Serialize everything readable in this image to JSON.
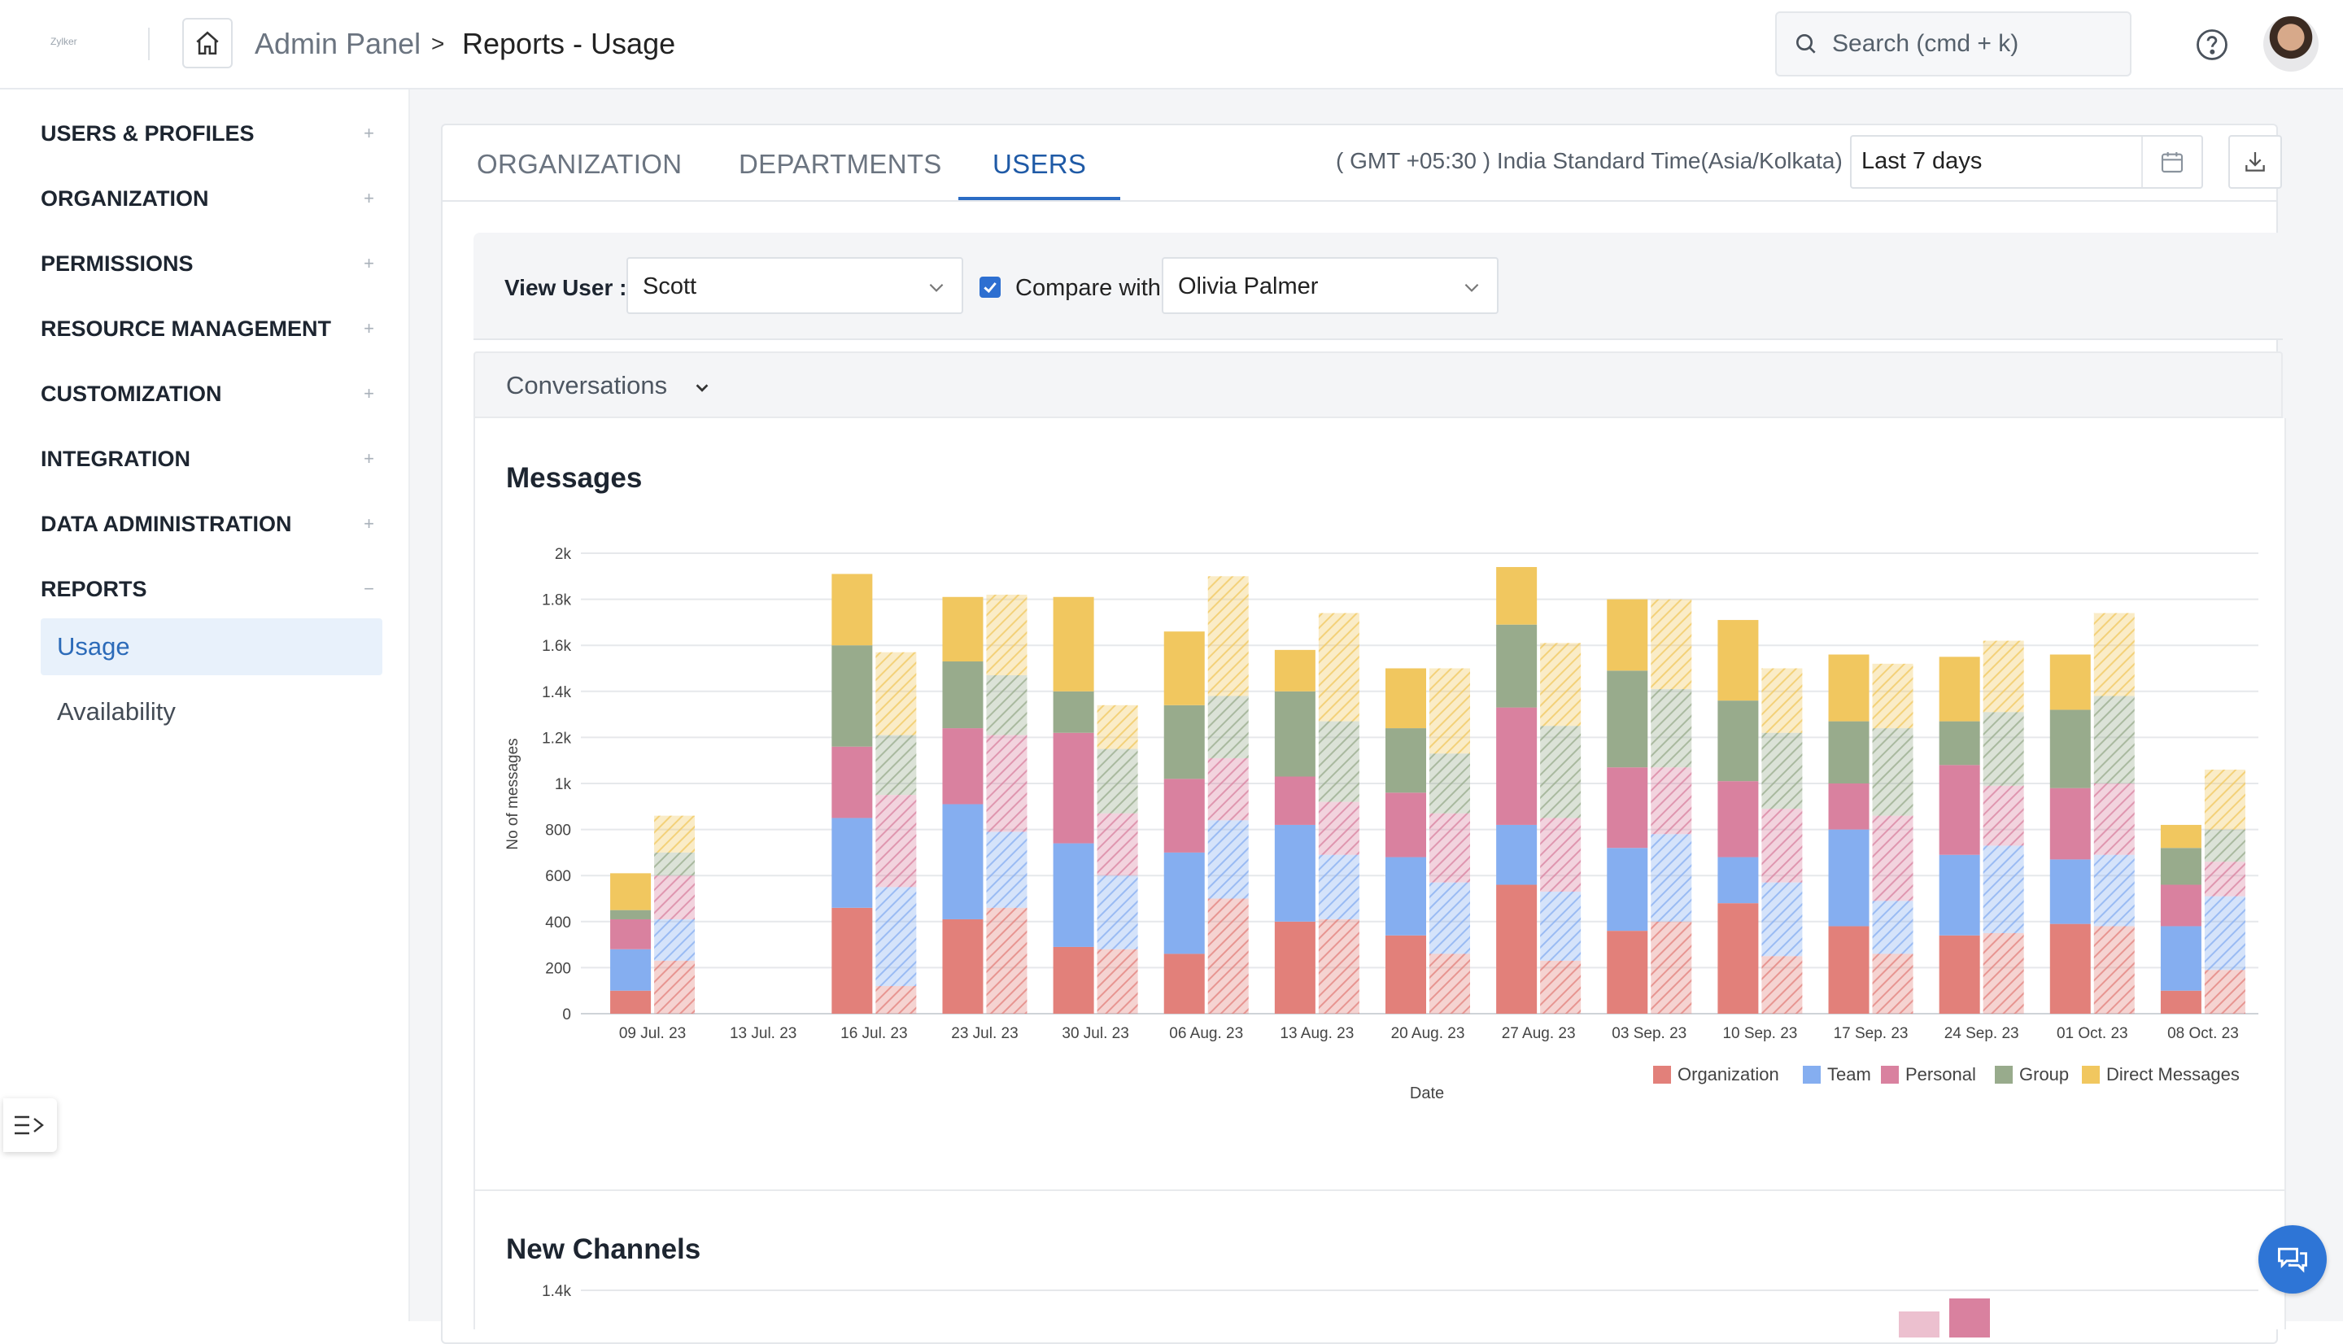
{
  "header": {
    "logo": "Zylker",
    "breadcrumb_root": "Admin Panel",
    "breadcrumb_sep": ">",
    "breadcrumb_current": "Reports - Usage",
    "search_placeholder": "Search (cmd + k)"
  },
  "sidebar": {
    "items": [
      {
        "label": "USERS & PROFILES",
        "toggle": "+"
      },
      {
        "label": "ORGANIZATION",
        "toggle": "+"
      },
      {
        "label": "PERMISSIONS",
        "toggle": "+"
      },
      {
        "label": "RESOURCE MANAGEMENT",
        "toggle": "+"
      },
      {
        "label": "CUSTOMIZATION",
        "toggle": "+"
      },
      {
        "label": "INTEGRATION",
        "toggle": "+"
      },
      {
        "label": "DATA ADMINISTRATION",
        "toggle": "+"
      },
      {
        "label": "REPORTS",
        "toggle": "−"
      }
    ],
    "sub_items": [
      {
        "label": "Usage",
        "active": true
      },
      {
        "label": "Availability",
        "active": false
      }
    ]
  },
  "tabs": [
    {
      "label": "ORGANIZATION",
      "active": false
    },
    {
      "label": "DEPARTMENTS",
      "active": false
    },
    {
      "label": "USERS",
      "active": true
    }
  ],
  "timezone": "( GMT +05:30 ) India Standard Time(Asia/Kolkata)",
  "date_range": "Last 7 days",
  "filters": {
    "view_user_label": "View User :",
    "view_user_value": "Scott",
    "compare_checked": true,
    "compare_label": "Compare with",
    "compare_value": "Olivia Palmer"
  },
  "section": {
    "title": "Conversations"
  },
  "colors": {
    "accent": "#2b6cc4",
    "Organization": "#e2807a",
    "Team": "#85aef0",
    "Personal": "#d9819f",
    "Group": "#98ab8c",
    "Direct Messages": "#f1c75f"
  },
  "chart_data": [
    {
      "type": "bar",
      "stacked": true,
      "grouped_compare": true,
      "title": "Messages",
      "xlabel": "Date",
      "ylabel": "No of messages",
      "ylim": [
        0,
        2000
      ],
      "yticks": [
        "0",
        "200",
        "400",
        "600",
        "800",
        "1k",
        "1.2k",
        "1.4k",
        "1.6k",
        "1.8k",
        "2k"
      ],
      "categories": [
        "09 Jul. 23",
        "13 Jul. 23",
        "16 Jul. 23",
        "23 Jul. 23",
        "30 Jul. 23",
        "06 Aug. 23",
        "13 Aug. 23",
        "20 Aug. 23",
        "27 Aug. 23",
        "03 Sep. 23",
        "10 Sep. 23",
        "17 Sep. 23",
        "24 Sep. 23",
        "01 Oct. 23",
        "08 Oct. 23"
      ],
      "stack_order": [
        "Organization",
        "Team",
        "Personal",
        "Group",
        "Direct Messages"
      ],
      "legend": [
        "Organization",
        "Team",
        "Personal",
        "Group",
        "Direct Messages"
      ],
      "legend_position": "bottom-right",
      "grid": true,
      "users": {
        "Scott": {
          "Organization": [
            100,
            0,
            460,
            410,
            290,
            260,
            400,
            340,
            560,
            360,
            480,
            380,
            340,
            390,
            100
          ],
          "Team": [
            180,
            0,
            390,
            500,
            450,
            440,
            420,
            340,
            260,
            360,
            200,
            420,
            350,
            280,
            280
          ],
          "Personal": [
            130,
            0,
            310,
            330,
            480,
            320,
            210,
            280,
            510,
            350,
            330,
            200,
            390,
            310,
            180
          ],
          "Group": [
            40,
            0,
            440,
            290,
            180,
            320,
            370,
            280,
            360,
            420,
            350,
            270,
            190,
            340,
            160
          ],
          "Direct Messages": [
            160,
            0,
            310,
            280,
            410,
            320,
            180,
            260,
            250,
            310,
            350,
            290,
            280,
            240,
            100
          ]
        },
        "Olivia Palmer": {
          "Organization": [
            230,
            0,
            120,
            460,
            280,
            500,
            410,
            260,
            230,
            400,
            250,
            260,
            350,
            380,
            190
          ],
          "Team": [
            180,
            0,
            430,
            330,
            320,
            340,
            280,
            310,
            300,
            380,
            320,
            230,
            380,
            310,
            320
          ],
          "Personal": [
            190,
            0,
            400,
            420,
            270,
            270,
            230,
            300,
            320,
            290,
            320,
            370,
            260,
            310,
            150
          ],
          "Group": [
            100,
            0,
            260,
            260,
            280,
            270,
            350,
            260,
            400,
            340,
            330,
            380,
            320,
            380,
            140
          ],
          "Direct Messages": [
            160,
            0,
            360,
            350,
            190,
            520,
            470,
            370,
            360,
            390,
            280,
            280,
            310,
            360,
            260
          ]
        }
      }
    },
    {
      "type": "bar",
      "title": "New Channels",
      "yticks": [
        "1.4k"
      ]
    }
  ]
}
